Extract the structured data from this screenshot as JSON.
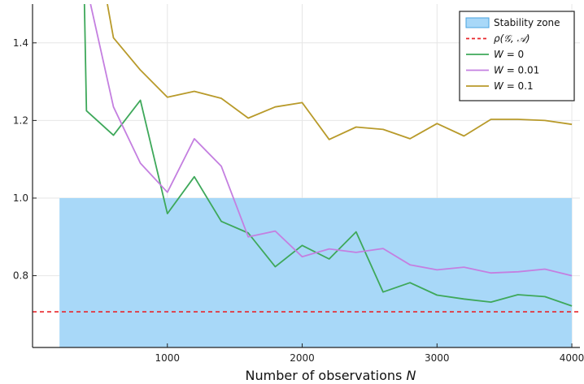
{
  "chart_data": {
    "type": "line",
    "title": "",
    "xlabel": "Number of observations N",
    "ylabel": "",
    "xlim": [
      0,
      4060
    ],
    "ylim": [
      0.615,
      1.5
    ],
    "xticks": [
      1000,
      2000,
      3000,
      4000
    ],
    "yticks": [
      0.8,
      1.0,
      1.2,
      1.4
    ],
    "xtick_labels": [
      "1000",
      "2000",
      "3000",
      "4000"
    ],
    "ytick_labels": [
      "0.8",
      "1.0",
      "1.2",
      "1.4"
    ],
    "grid": true,
    "legend_position": "top-right",
    "stability_zone": {
      "name": "Stability zone",
      "x": [
        200,
        4000
      ],
      "y": [
        0.615,
        1.0
      ],
      "color": "#a8d8f8",
      "edge_color": "#4aa3df"
    },
    "reference_line": {
      "name": "ρ(G, A)",
      "y": 0.707,
      "color": "#e8262b"
    },
    "x": [
      200,
      400,
      600,
      800,
      1000,
      1200,
      1400,
      1600,
      1800,
      2000,
      2200,
      2400,
      2600,
      2800,
      3000,
      3200,
      3400,
      3600,
      3800,
      4000
    ],
    "series": [
      {
        "name": "W = 0",
        "color": "#3ea85a",
        "values": [
          null,
          1.225,
          1.162,
          1.252,
          0.96,
          1.055,
          0.94,
          0.91,
          0.823,
          0.878,
          0.843,
          0.913,
          0.758,
          0.782,
          0.75,
          0.74,
          0.732,
          0.751,
          0.746,
          0.722
        ],
        "entry": [
          [
            385,
            1.5
          ],
          [
            400,
            1.225
          ]
        ]
      },
      {
        "name": "W = 0.01",
        "color": "#c47fe0",
        "values": [
          null,
          null,
          1.235,
          1.09,
          1.015,
          1.153,
          1.082,
          0.9,
          0.915,
          0.849,
          0.869,
          0.86,
          0.87,
          0.828,
          0.815,
          0.822,
          0.807,
          0.81,
          0.817,
          0.8
        ],
        "entry": [
          [
            430,
            1.5
          ],
          [
            600,
            1.235
          ]
        ]
      },
      {
        "name": "W = 0.1",
        "color": "#b89a2a",
        "values": [
          null,
          null,
          1.413,
          1.33,
          1.26,
          1.275,
          1.257,
          1.206,
          1.235,
          1.246,
          1.151,
          1.183,
          1.177,
          1.153,
          1.192,
          1.16,
          1.203,
          1.203,
          1.2,
          1.19
        ],
        "entry": [
          [
            555,
            1.5
          ],
          [
            600,
            1.413
          ]
        ]
      }
    ]
  },
  "legend": {
    "items": [
      {
        "kind": "patch",
        "prefix": "",
        "math": "",
        "text": "Stability zone",
        "color": "#a8d8f8",
        "edge": "#4aa3df"
      },
      {
        "kind": "dashed",
        "prefix": "",
        "math": "ρ(𝒢, 𝒜)",
        "text": "",
        "color": "#e8262b"
      },
      {
        "kind": "line",
        "prefix": "W",
        "math": "",
        "text": " = 0",
        "color": "#3ea85a"
      },
      {
        "kind": "line",
        "prefix": "W",
        "math": "",
        "text": " = 0.01",
        "color": "#c47fe0"
      },
      {
        "kind": "line",
        "prefix": "W",
        "math": "",
        "text": " = 0.1",
        "color": "#b89a2a"
      }
    ]
  },
  "labels": {
    "xlabel_prefix": "Number of observations ",
    "xlabel_var": "N"
  }
}
